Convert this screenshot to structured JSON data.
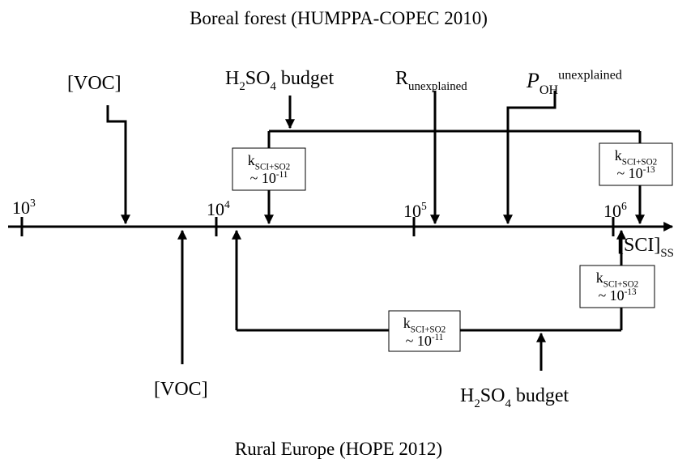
{
  "titles": {
    "top": "Boreal forest (HUMPPA-COPEC 2010)",
    "bottom": "Rural Europe (HOPE 2012)"
  },
  "axis": {
    "ticks": [
      [
        {
          "text": "10",
          "style": "normal"
        },
        {
          "text": "3",
          "style": "sup"
        }
      ],
      [
        {
          "text": "10",
          "style": "normal"
        },
        {
          "text": "4",
          "style": "sup"
        }
      ],
      [
        {
          "text": "10",
          "style": "normal"
        },
        {
          "text": "5",
          "style": "sup"
        }
      ],
      [
        {
          "text": "10",
          "style": "normal"
        },
        {
          "text": "6",
          "style": "sup"
        }
      ]
    ],
    "label": [
      {
        "text": "[SCI]",
        "style": "normal"
      },
      {
        "text": "SS",
        "style": "sub"
      }
    ]
  },
  "top": {
    "voc": [
      {
        "text": "[VOC]",
        "style": "normal"
      }
    ],
    "h2so4": [
      {
        "text": "H",
        "style": "normal"
      },
      {
        "text": "2",
        "style": "sub"
      },
      {
        "text": "SO",
        "style": "normal"
      },
      {
        "text": "4",
        "style": "sub"
      },
      {
        "text": " budget",
        "style": "normal"
      }
    ],
    "r_unexplained": [
      {
        "text": "R",
        "style": "normal"
      },
      {
        "text": "unexplained",
        "style": "sub"
      }
    ],
    "p_oh": [
      {
        "text": "P",
        "style": "italic"
      },
      {
        "text": "OH",
        "style": "sub"
      },
      {
        "text": "unexplained",
        "style": "sup"
      }
    ],
    "box_left": [
      [
        {
          "text": "k",
          "style": "normal"
        },
        {
          "text": "SCI+SO",
          "style": "sub"
        },
        {
          "text": "2",
          "style": "sub"
        }
      ],
      [
        {
          "text": "~ 10",
          "style": "normal"
        },
        {
          "text": "-11",
          "style": "sup"
        }
      ]
    ],
    "box_right": [
      [
        {
          "text": "k",
          "style": "normal"
        },
        {
          "text": "SCI+SO",
          "style": "sub"
        },
        {
          "text": "2",
          "style": "sub"
        }
      ],
      [
        {
          "text": "~ 10",
          "style": "normal"
        },
        {
          "text": "-13",
          "style": "sup"
        }
      ]
    ]
  },
  "bottom": {
    "voc": [
      {
        "text": "[VOC]",
        "style": "normal"
      }
    ],
    "h2so4": [
      {
        "text": "H",
        "style": "normal"
      },
      {
        "text": "2",
        "style": "sub"
      },
      {
        "text": "SO",
        "style": "normal"
      },
      {
        "text": "4",
        "style": "sub"
      },
      {
        "text": " budget",
        "style": "normal"
      }
    ],
    "box_left": [
      [
        {
          "text": "k",
          "style": "normal"
        },
        {
          "text": "SCI+SO",
          "style": "sub"
        },
        {
          "text": "2",
          "style": "sub"
        }
      ],
      [
        {
          "text": "~ 10",
          "style": "normal"
        },
        {
          "text": "-11",
          "style": "sup"
        }
      ]
    ],
    "box_right": [
      [
        {
          "text": "k",
          "style": "normal"
        },
        {
          "text": "SCI+SO",
          "style": "sub"
        },
        {
          "text": "2",
          "style": "sub"
        }
      ],
      [
        {
          "text": "~ 10",
          "style": "normal"
        },
        {
          "text": "-13",
          "style": "sup"
        }
      ]
    ]
  }
}
